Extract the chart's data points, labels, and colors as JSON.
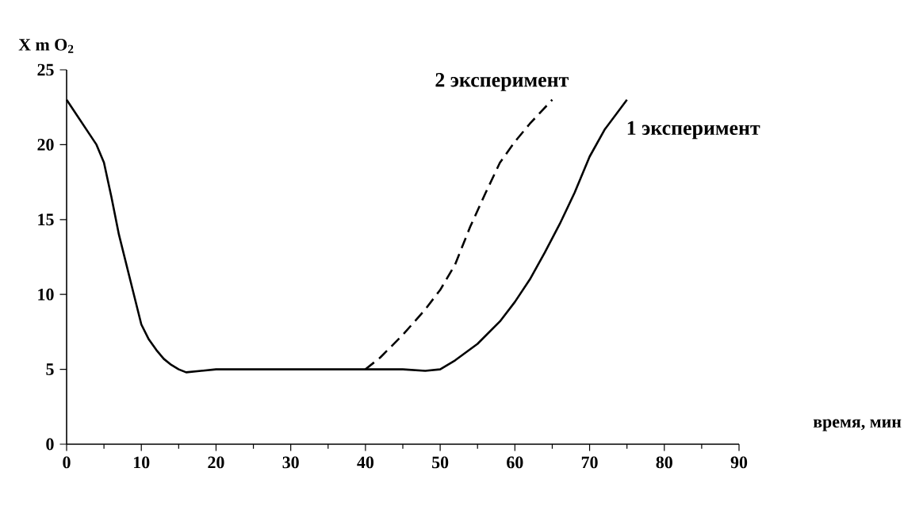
{
  "chart_data": {
    "type": "line",
    "ylabel": "X m O$_{2}$",
    "xlabel": "время, мин",
    "xlim": [
      0,
      90
    ],
    "xticks": [
      0,
      10,
      20,
      30,
      40,
      50,
      60,
      70,
      80,
      90
    ],
    "ylim": [
      0,
      25
    ],
    "yticks": [
      0,
      5,
      10,
      15,
      20,
      25
    ],
    "grid": false,
    "marker": "none",
    "series": [
      {
        "name": "1 эксперимент",
        "color": "#000000",
        "line_style": "solid",
        "x": [
          0,
          2,
          4,
          5,
          6,
          7,
          8,
          9,
          10,
          11,
          12,
          13,
          14,
          15,
          16,
          18,
          20,
          30,
          40,
          45,
          48,
          50,
          52,
          55,
          58,
          60,
          62,
          64,
          66,
          68,
          70,
          72,
          75
        ],
        "values": [
          23,
          21.5,
          20,
          18.8,
          16.5,
          14,
          12,
          10,
          8,
          7,
          6.3,
          5.7,
          5.3,
          5,
          4.8,
          4.9,
          5,
          5,
          5,
          5,
          4.9,
          5,
          5.6,
          6.7,
          8.2,
          9.5,
          11,
          12.8,
          14.7,
          16.8,
          19.2,
          21,
          23
        ]
      },
      {
        "name": "2 эксперимент",
        "color": "#000000",
        "line_style": "dashed",
        "x": [
          40,
          42,
          45,
          48,
          50,
          52,
          54,
          56,
          58,
          60,
          62,
          65
        ],
        "values": [
          5,
          5.8,
          7.3,
          9,
          10.3,
          12,
          14.5,
          16.7,
          18.8,
          20.2,
          21.4,
          23
        ]
      }
    ]
  }
}
